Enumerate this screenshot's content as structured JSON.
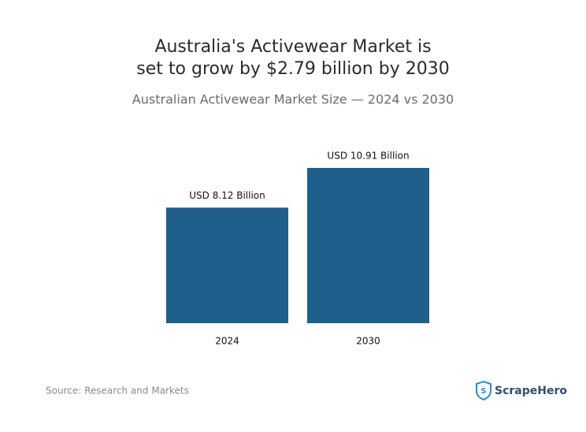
{
  "chart_data": {
    "type": "bar",
    "title": [
      "Australia's Activewear Market is",
      "set to grow by $2.79 billion by 2030"
    ],
    "subtitle": "Australian Activewear Market Size — 2024 vs 2030",
    "categories": [
      "2024",
      "2030"
    ],
    "values": [
      8.12,
      10.91
    ],
    "value_labels": [
      "USD 8.12 Billion",
      "USD 10.91 Billion"
    ],
    "color": "#1f5f8b",
    "source": "Source: Research and Markets",
    "brand": "ScrapeHero"
  }
}
